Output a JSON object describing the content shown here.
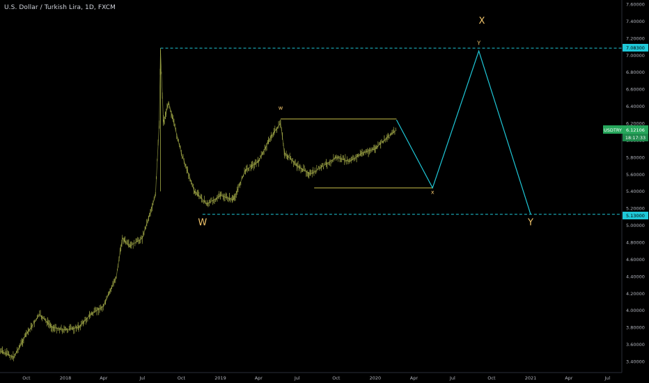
{
  "header": {
    "title": "U.S. Dollar / Turkish Lira, 1D, FXCM"
  },
  "badges": {
    "upper_level": "7.08300",
    "lower_level": "5.13000",
    "symbol": "USDTRY",
    "last_price": "6.12106",
    "countdown": "18:17:33"
  },
  "colors": {
    "background": "#000000",
    "candles": "#a8b04a",
    "range_box": "#c8c04a",
    "projection": "#1fc8d8",
    "dashed_levels": "#1fc8d8",
    "wave_labels": "#f0c36a",
    "price_badge": "#26a65b"
  },
  "chart_data": {
    "type": "line",
    "title": "U.S. Dollar / Turkish Lira, 1D, FXCM",
    "xlabel": "",
    "ylabel": "",
    "ylim": [
      3.33,
      7.62
    ],
    "y_ticks": [
      "3.40000",
      "3.60000",
      "3.80000",
      "4.00000",
      "4.20000",
      "4.40000",
      "4.60000",
      "4.80000",
      "5.00000",
      "5.20000",
      "5.40000",
      "5.60000",
      "5.80000",
      "6.00000",
      "6.20000",
      "6.40000",
      "6.60000",
      "6.80000",
      "7.00000",
      "7.20000",
      "7.40000",
      "7.60000"
    ],
    "x_ticks": [
      "Oct",
      "2018",
      "Apr",
      "Jul",
      "Oct",
      "2019",
      "Apr",
      "Jul",
      "Oct",
      "2020",
      "Apr",
      "Jul",
      "Oct",
      "2021",
      "Apr",
      "Jul"
    ],
    "series": [
      {
        "x": [
          "2017-08-01",
          "2017-09-01",
          "2017-10-01",
          "2017-11-01",
          "2017-12-01",
          "2018-01-01",
          "2018-02-01",
          "2018-03-01",
          "2018-04-01",
          "2018-05-01",
          "2018-05-15",
          "2018-06-01",
          "2018-07-01",
          "2018-08-01",
          "2018-08-10",
          "2018-08-13",
          "2018-08-20",
          "2018-09-01",
          "2018-10-01",
          "2018-11-01",
          "2018-12-01",
          "2019-01-01",
          "2019-02-01",
          "2019-03-01",
          "2019-04-01",
          "2019-05-01",
          "2019-05-23",
          "2019-06-01",
          "2019-07-01",
          "2019-08-01",
          "2019-09-01",
          "2019-10-01",
          "2019-11-01",
          "2019-12-01",
          "2020-01-01",
          "2020-02-01",
          "2020-02-20"
        ],
        "values": [
          3.52,
          3.45,
          3.72,
          3.95,
          3.8,
          3.77,
          3.8,
          3.95,
          4.05,
          4.4,
          4.85,
          4.75,
          4.85,
          5.35,
          6.2,
          7.05,
          6.2,
          6.45,
          5.85,
          5.4,
          5.25,
          5.35,
          5.3,
          5.65,
          5.75,
          6.05,
          6.2,
          5.85,
          5.7,
          5.6,
          5.7,
          5.8,
          5.75,
          5.85,
          5.9,
          6.05,
          6.12
        ]
      }
    ],
    "range_box": {
      "start": "2019-05-23",
      "end": "2020-02-20",
      "top": 6.25,
      "bottom": 5.44
    },
    "levels": [
      {
        "value": 7.083,
        "start": "2018-08-13"
      },
      {
        "value": 5.13,
        "start": "2018-11-20"
      }
    ],
    "projection": {
      "x": [
        "2020-02-20",
        "2020-05-15",
        "2020-09-01",
        "2021-01-01"
      ],
      "values": [
        6.24,
        5.44,
        7.05,
        5.13
      ]
    },
    "annotations": [
      {
        "text": "W",
        "x": "2018-11-20",
        "y": 5.0,
        "size": "large"
      },
      {
        "text": "w",
        "x": "2019-05-23",
        "y": 6.36,
        "size": "small"
      },
      {
        "text": "x",
        "x": "2020-05-15",
        "y": 5.37,
        "size": "small"
      },
      {
        "text": "X",
        "x": "2020-09-08",
        "y": 7.37,
        "size": "large"
      },
      {
        "text": "Y",
        "x": "2020-09-01",
        "y": 7.12,
        "size": "small"
      },
      {
        "text": "Y",
        "x": "2021-01-01",
        "y": 5.0,
        "size": "large"
      }
    ],
    "grid": false,
    "legend": "none"
  }
}
